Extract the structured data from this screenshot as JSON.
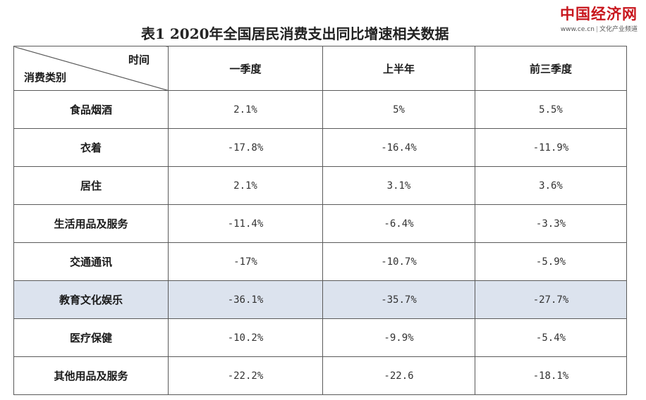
{
  "logo": {
    "main": "中国经济网",
    "url": "www.ce.cn",
    "channel": "文化产业频道"
  },
  "title": "表1 2020年全国居民消费支出同比增速相关数据",
  "table": {
    "corner_top": "时间",
    "corner_bottom": "消费类别",
    "columns": [
      "一季度",
      "上半年",
      "前三季度"
    ],
    "rows": [
      {
        "category": "食品烟酒",
        "values": [
          "2.1%",
          "5%",
          "5.5%"
        ]
      },
      {
        "category": "衣着",
        "values": [
          "-17.8%",
          "-16.4%",
          "-11.9%"
        ]
      },
      {
        "category": "居住",
        "values": [
          "2.1%",
          "3.1%",
          "3.6%"
        ]
      },
      {
        "category": "生活用品及服务",
        "values": [
          "-11.4%",
          "-6.4%",
          "-3.3%"
        ]
      },
      {
        "category": "交通通讯",
        "values": [
          "-17%",
          "-10.7%",
          "-5.9%"
        ]
      },
      {
        "category": "教育文化娱乐",
        "values": [
          "-36.1%",
          "-35.7%",
          "-27.7%"
        ]
      },
      {
        "category": "医疗保健",
        "values": [
          "-10.2%",
          "-9.9%",
          "-5.4%"
        ]
      },
      {
        "category": "其他用品及服务",
        "values": [
          "-22.2%",
          "-22.6",
          "-18.1%"
        ]
      }
    ],
    "highlight_color": "#dce3ee"
  }
}
